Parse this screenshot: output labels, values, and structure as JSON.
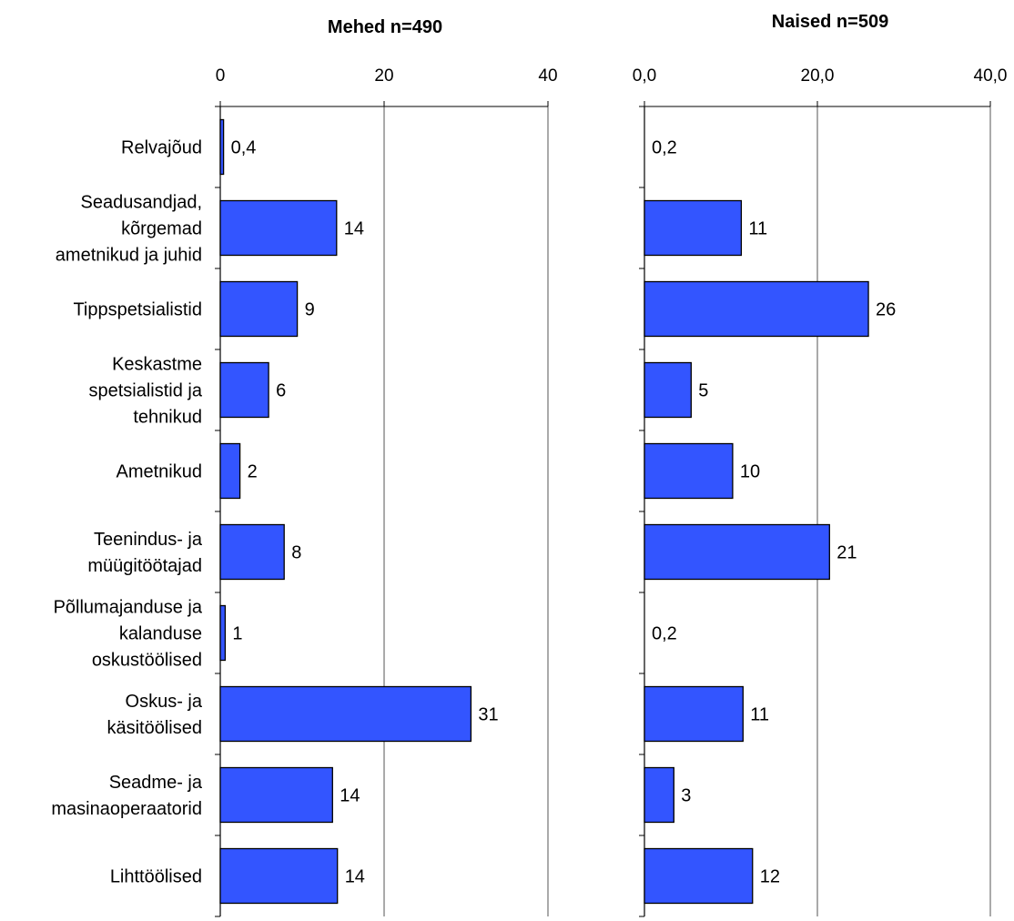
{
  "chart_data": [
    {
      "type": "bar",
      "orientation": "horizontal",
      "title": "Mehed n=490",
      "categories": [
        "Relvajõud",
        "Seadusandjad, kõrgemad ametnikud ja juhid",
        "Tippspetsialistid",
        "Keskastme spetsialistid ja tehnikud",
        "Ametnikud",
        "Teenindus- ja müügitöötajad",
        "Põllumajanduse ja kalanduse oskustöölised",
        "Oskus- ja käsitöölised",
        "Seadme- ja masinaoperaatorid",
        "Lihttöölised"
      ],
      "category_lines": [
        [
          "Relvajõud"
        ],
        [
          "Seadusandjad,",
          "kõrgemad",
          "ametnikud ja juhid"
        ],
        [
          "Tippspetsialistid"
        ],
        [
          "Keskastme",
          "spetsialistid ja",
          "tehnikud"
        ],
        [
          "Ametnikud"
        ],
        [
          "Teenindus- ja",
          "müügitöötajad"
        ],
        [
          "Põllumajanduse ja",
          "kalanduse",
          "oskustöölised"
        ],
        [
          "Oskus- ja",
          "käsitöölised"
        ],
        [
          "Seadme- ja",
          "masinaoperaatorid"
        ],
        [
          "Lihttöölised"
        ]
      ],
      "values": [
        0.4,
        14.2,
        9.4,
        5.9,
        2.4,
        7.8,
        0.6,
        30.6,
        13.7,
        14.3
      ],
      "data_labels": [
        "0,4",
        "14",
        "9",
        "6",
        "2",
        "8",
        "1",
        "31",
        "14",
        "14"
      ],
      "xlim": [
        0,
        40
      ],
      "x_ticks": [
        0,
        20,
        40
      ],
      "x_tick_labels": [
        "0",
        "20",
        "40"
      ],
      "grid": true,
      "bar_color": "#3355ff"
    },
    {
      "type": "bar",
      "orientation": "horizontal",
      "title": "Naised n=509",
      "categories": [
        "Relvajõud",
        "Seadusandjad, kõrgemad ametnikud ja juhid",
        "Tippspetsialistid",
        "Keskastme spetsialistid ja tehnikud",
        "Ametnikud",
        "Teenindus- ja müügitöötajad",
        "Põllumajanduse ja kalanduse oskustöölised",
        "Oskus- ja käsitöölised",
        "Seadme- ja masinaoperaatorid",
        "Lihttöölised"
      ],
      "values": [
        0.2,
        11.2,
        25.9,
        5.4,
        10.2,
        21.4,
        0.2,
        11.4,
        3.4,
        12.5
      ],
      "data_labels": [
        "0,2",
        "11",
        "26",
        "5",
        "10",
        "21",
        "0,2",
        "11",
        "3",
        "12"
      ],
      "xlim": [
        0,
        40
      ],
      "x_ticks": [
        0,
        20,
        40
      ],
      "x_tick_labels": [
        "0,0",
        "20,0",
        "40,0"
      ],
      "grid": true,
      "bar_color": "#3355ff"
    }
  ]
}
